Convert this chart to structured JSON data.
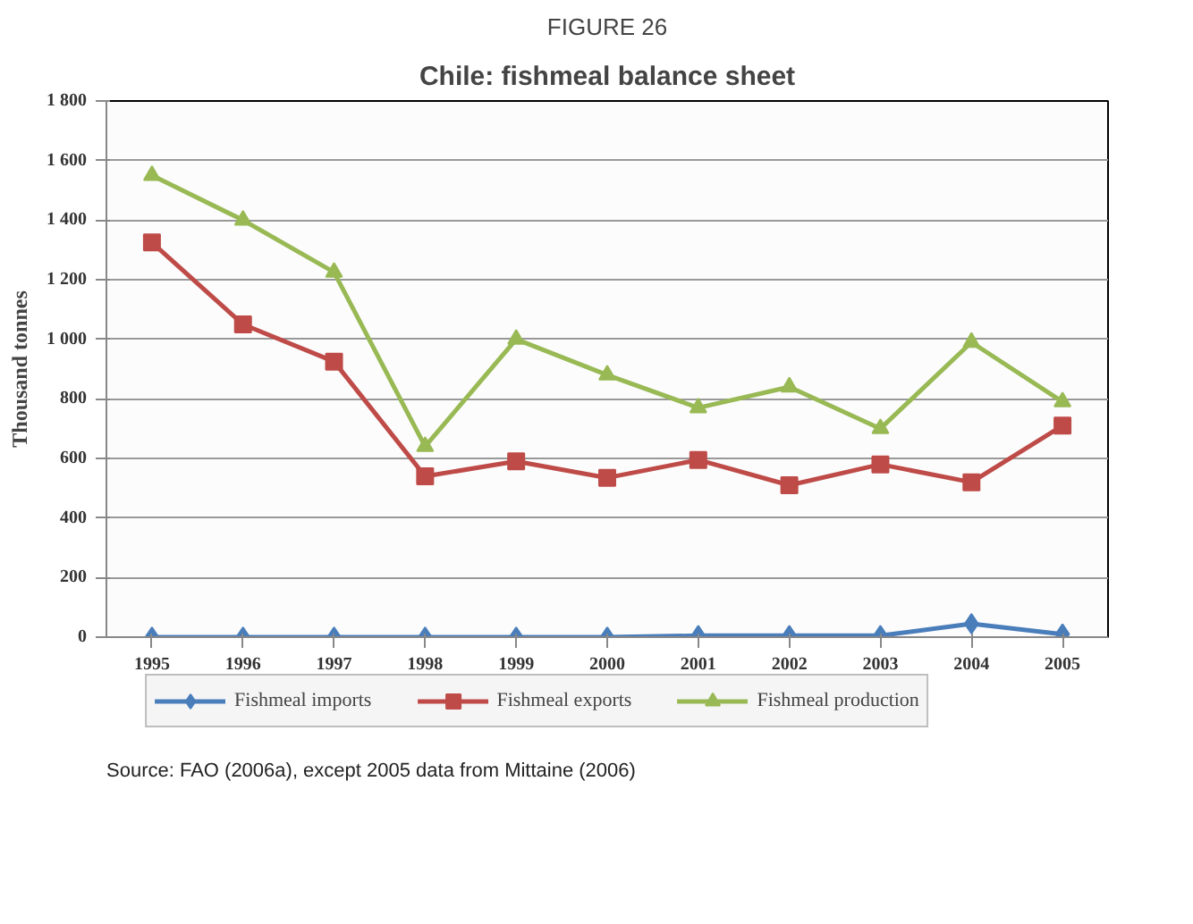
{
  "chart_data": {
    "type": "line",
    "title": "Chile: fishmeal balance sheet",
    "subtitle": "FIGURE 26",
    "ylabel": "Thousand tonnes",
    "categories": [
      "1995",
      "1996",
      "1997",
      "1998",
      "1999",
      "2000",
      "2001",
      "2002",
      "2003",
      "2004",
      "2005"
    ],
    "series": [
      {
        "name": "Fishmeal imports",
        "color": "#4a7ebb",
        "marker": "diamond",
        "values": [
          0,
          0,
          0,
          0,
          0,
          0,
          5,
          5,
          5,
          45,
          10
        ]
      },
      {
        "name": "Fishmeal exports",
        "color": "#be4b48",
        "marker": "square",
        "values": [
          1325,
          1050,
          925,
          540,
          590,
          535,
          595,
          510,
          580,
          520,
          710
        ]
      },
      {
        "name": "Fishmeal production",
        "color": "#98b954",
        "marker": "triangle",
        "values": [
          1550,
          1400,
          1225,
          640,
          1000,
          880,
          770,
          840,
          700,
          990,
          790
        ]
      }
    ],
    "ylim": [
      0,
      1800
    ],
    "yticks": [
      {
        "value": 0,
        "label": "0"
      },
      {
        "value": 200,
        "label": "200"
      },
      {
        "value": 400,
        "label": "400"
      },
      {
        "value": 600,
        "label": "600"
      },
      {
        "value": 800,
        "label": "800"
      },
      {
        "value": 1000,
        "label": "1 000"
      },
      {
        "value": 1200,
        "label": "1 200"
      },
      {
        "value": 1400,
        "label": "1 400"
      },
      {
        "value": 1600,
        "label": "1 600"
      },
      {
        "value": 1800,
        "label": "1 800"
      }
    ],
    "grid": "y",
    "legend": "bottom",
    "line_style": "solid",
    "annotations": [
      "Source: FAO (2006a), except 2005 data from Mittaine (2006)"
    ]
  }
}
